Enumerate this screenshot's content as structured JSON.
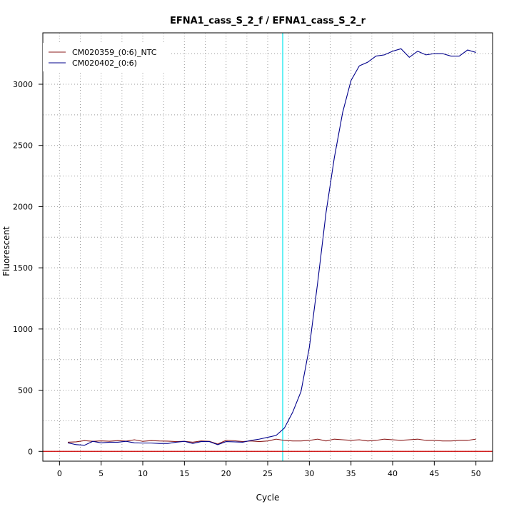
{
  "chart_data": {
    "type": "line",
    "title": "EFNA1_cass_S_2_f / EFNA1_cass_S_2_r",
    "xlabel": "Cycle",
    "ylabel": "Fluorescent",
    "xlim": [
      -2,
      52
    ],
    "ylim": [
      -80,
      3420
    ],
    "x_ticks": [
      0,
      5,
      10,
      15,
      20,
      25,
      30,
      35,
      40,
      45,
      50
    ],
    "y_ticks": [
      0,
      500,
      1000,
      1500,
      2000,
      2500,
      3000
    ],
    "grid": true,
    "legend_position": "top-left",
    "threshold_x": 26.8,
    "threshold_color": "#00e5ee",
    "baseline_y": 0,
    "baseline_color": "#cc0000",
    "x": [
      1,
      2,
      3,
      4,
      5,
      6,
      7,
      8,
      9,
      10,
      11,
      12,
      13,
      14,
      15,
      16,
      17,
      18,
      19,
      20,
      21,
      22,
      23,
      24,
      25,
      26,
      27,
      28,
      29,
      30,
      31,
      32,
      33,
      34,
      35,
      36,
      37,
      38,
      39,
      40,
      41,
      42,
      43,
      44,
      45,
      46,
      47,
      48,
      49,
      50
    ],
    "series": [
      {
        "name": "CM020359_(0:6)_NTC",
        "color": "#8b1a1a",
        "values": [
          75,
          78,
          88,
          82,
          86,
          83,
          88,
          84,
          95,
          82,
          88,
          85,
          84,
          80,
          82,
          75,
          85,
          82,
          60,
          90,
          87,
          80,
          85,
          80,
          85,
          100,
          90,
          85,
          85,
          90,
          100,
          85,
          100,
          95,
          90,
          95,
          85,
          90,
          100,
          95,
          90,
          95,
          100,
          90,
          90,
          85,
          85,
          90,
          90,
          100
        ]
      },
      {
        "name": "CM020402_(0:6)",
        "color": "#00008b",
        "values": [
          70,
          55,
          50,
          82,
          70,
          75,
          75,
          82,
          70,
          68,
          68,
          65,
          65,
          75,
          82,
          65,
          80,
          80,
          55,
          80,
          78,
          75,
          90,
          100,
          115,
          130,
          190,
          320,
          490,
          850,
          1380,
          1950,
          2400,
          2770,
          3030,
          3150,
          3180,
          3230,
          3240,
          3270,
          3290,
          3220,
          3270,
          3240,
          3250,
          3250,
          3230,
          3230,
          3280,
          3260
        ]
      }
    ]
  }
}
